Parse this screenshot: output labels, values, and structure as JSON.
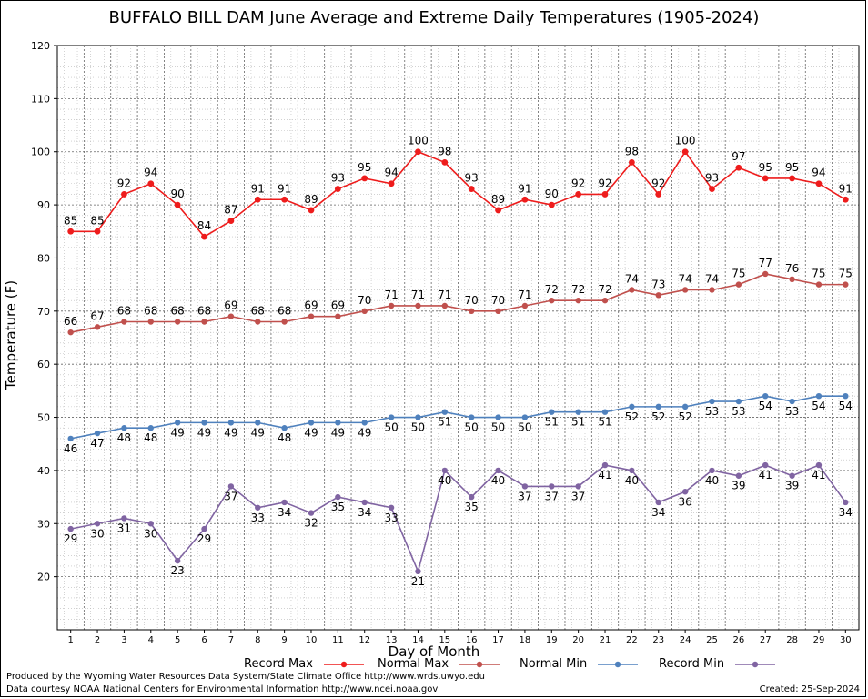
{
  "chart_data": {
    "type": "line",
    "title": "BUFFALO BILL DAM June Average and Extreme Daily Temperatures (1905-2024)",
    "xlabel": "Day of Month",
    "ylabel": "Temperature (F)",
    "ylim": [
      10,
      120
    ],
    "yticks": [
      20,
      30,
      40,
      50,
      60,
      70,
      80,
      90,
      100,
      110,
      120
    ],
    "grid": true,
    "legend": "bottom",
    "x": [
      1,
      2,
      3,
      4,
      5,
      6,
      7,
      8,
      9,
      10,
      11,
      12,
      13,
      14,
      15,
      16,
      17,
      18,
      19,
      20,
      21,
      22,
      23,
      24,
      25,
      26,
      27,
      28,
      29,
      30
    ],
    "series": [
      {
        "name": "Record Max",
        "color": "#ee1c1c",
        "labels": "above",
        "values": [
          85,
          85,
          92,
          94,
          90,
          84,
          87,
          91,
          91,
          89,
          93,
          95,
          94,
          100,
          98,
          93,
          89,
          91,
          90,
          92,
          92,
          98,
          92,
          100,
          93,
          97,
          95,
          95,
          94,
          91
        ]
      },
      {
        "name": "Normal Max",
        "color": "#c0504d",
        "labels": "above",
        "values": [
          66,
          67,
          68,
          68,
          68,
          68,
          69,
          68,
          68,
          69,
          69,
          70,
          71,
          71,
          71,
          70,
          70,
          71,
          72,
          72,
          72,
          74,
          73,
          74,
          74,
          75,
          77,
          76,
          75,
          75
        ]
      },
      {
        "name": "Normal Min",
        "color": "#4f81bd",
        "labels": "below",
        "values": [
          46,
          47,
          48,
          48,
          49,
          49,
          49,
          49,
          48,
          49,
          49,
          49,
          50,
          50,
          51,
          50,
          50,
          50,
          51,
          51,
          51,
          52,
          52,
          52,
          53,
          53,
          54,
          53,
          54,
          54
        ]
      },
      {
        "name": "Record Min",
        "color": "#8064a2",
        "labels": "below",
        "values": [
          29,
          30,
          31,
          30,
          23,
          29,
          37,
          33,
          34,
          32,
          35,
          34,
          33,
          21,
          40,
          35,
          40,
          37,
          37,
          37,
          41,
          40,
          34,
          36,
          40,
          39,
          41,
          39,
          41,
          34
        ]
      }
    ]
  },
  "footer": {
    "line1": "Produced by the Wyoming Water Resources Data System/State Climate Office http://www.wrds.uwyo.edu",
    "line2": "Data courtesy NOAA National Centers for Environmental Information http://www.ncei.noaa.gov",
    "created": "Created:  25-Sep-2024"
  }
}
